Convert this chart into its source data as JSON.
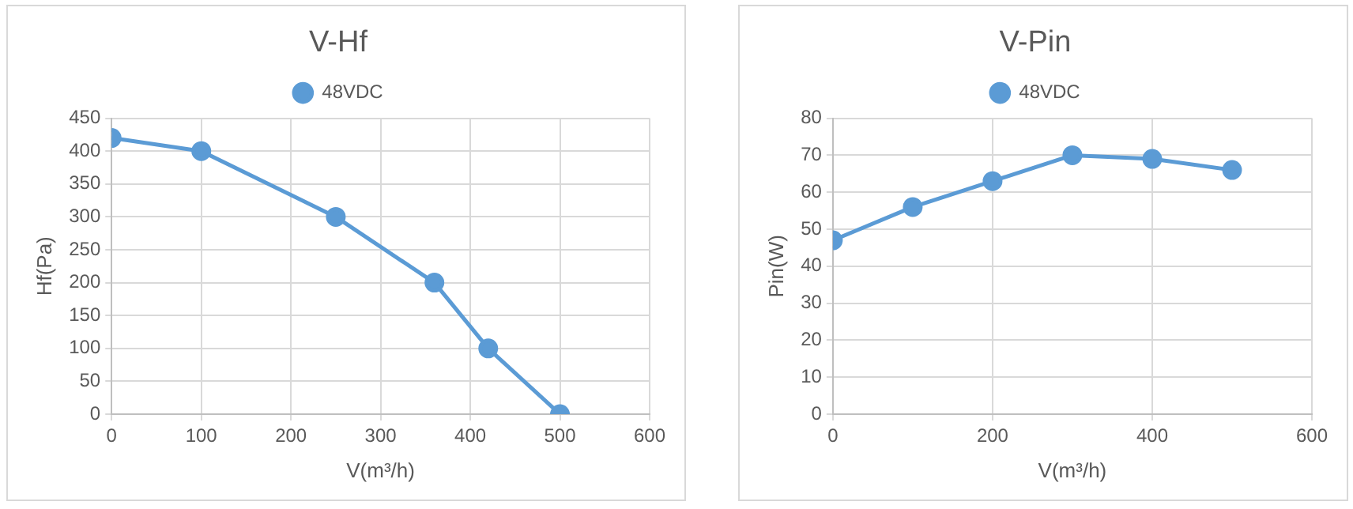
{
  "chart_data": [
    {
      "type": "line",
      "title": "V-Hf",
      "xlabel": "V(m³/h)",
      "ylabel": "Hf(Pa)",
      "x": [
        0,
        100,
        250,
        360,
        420,
        500
      ],
      "series": [
        {
          "name": "48VDC",
          "color": "#5b9bd5",
          "values": [
            420,
            400,
            300,
            200,
            100,
            0
          ]
        }
      ],
      "xlim": [
        0,
        600
      ],
      "xticks": [
        0,
        100,
        200,
        300,
        400,
        500,
        600
      ],
      "ylim": [
        0,
        450
      ],
      "yticks": [
        0,
        50,
        100,
        150,
        200,
        250,
        300,
        350,
        400,
        450
      ],
      "grid": true,
      "legend": "top",
      "marker": "circle",
      "line_style": "solid"
    },
    {
      "type": "line",
      "title": "V-Pin",
      "xlabel": "V(m³/h)",
      "ylabel": "Pin(W)",
      "x": [
        0,
        100,
        200,
        300,
        400,
        500
      ],
      "series": [
        {
          "name": "48VDC",
          "color": "#5b9bd5",
          "values": [
            47,
            56,
            63,
            70,
            69,
            66
          ]
        }
      ],
      "xlim": [
        0,
        600
      ],
      "xticks": [
        0,
        200,
        400,
        600
      ],
      "ylim": [
        0,
        80
      ],
      "yticks": [
        0,
        10,
        20,
        30,
        40,
        50,
        60,
        70,
        80
      ],
      "grid": true,
      "legend": "top",
      "marker": "circle",
      "line_style": "solid"
    }
  ]
}
